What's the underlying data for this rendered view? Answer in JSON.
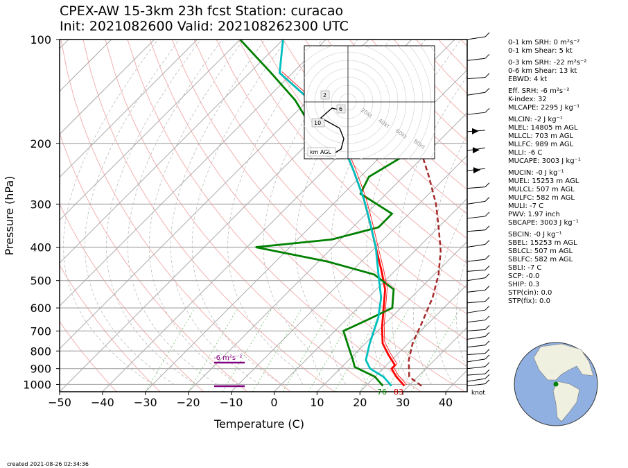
{
  "header": {
    "line1": "CPEX-AW 15-3km  23h fcst  Station: curacao",
    "line2": "Init: 2021082600  Valid: 202108262300 UTC"
  },
  "axes": {
    "xlabel": "Temperature (C)",
    "ylabel": "Pressure (hPa)",
    "xticks": [
      "−50",
      "−40",
      "−30",
      "−20",
      "−10",
      "0",
      "10",
      "20",
      "30",
      "40"
    ],
    "yticks": [
      "100",
      "200",
      "300",
      "400",
      "500",
      "600",
      "700",
      "800",
      "900",
      "1000"
    ]
  },
  "chart_data": {
    "type": "line",
    "subtype": "skew-T log-P sounding",
    "xlim": [
      -50,
      45
    ],
    "ylim": [
      1050,
      100
    ],
    "yscale": "log",
    "series": [
      {
        "name": "temperature",
        "color": "#ff0000",
        "points": [
          [
            29,
            1010
          ],
          [
            25,
            950
          ],
          [
            22,
            900
          ],
          [
            22,
            880
          ],
          [
            18,
            820
          ],
          [
            14,
            760
          ],
          [
            10,
            680
          ],
          [
            6,
            600
          ],
          [
            2,
            530
          ],
          [
            -3,
            470
          ],
          [
            -10,
            400
          ],
          [
            -17,
            340
          ],
          [
            -24,
            290
          ],
          [
            -33,
            240
          ],
          [
            -42,
            200
          ],
          [
            -51,
            170
          ],
          [
            -62,
            145
          ],
          [
            -73,
            125
          ]
        ]
      },
      {
        "name": "dewpoint",
        "color": "#008000",
        "points": [
          [
            24,
            1010
          ],
          [
            20,
            950
          ],
          [
            13,
            890
          ],
          [
            11,
            850
          ],
          [
            7,
            780
          ],
          [
            2,
            700
          ],
          [
            5,
            650
          ],
          [
            8,
            600
          ],
          [
            4,
            530
          ],
          [
            -4,
            480
          ],
          [
            -18,
            440
          ],
          [
            -38,
            400
          ],
          [
            -22,
            380
          ],
          [
            -14,
            350
          ],
          [
            -14,
            320
          ],
          [
            -26,
            280
          ],
          [
            -28,
            250
          ],
          [
            -25,
            220
          ],
          [
            -30,
            200
          ],
          [
            -56,
            170
          ],
          [
            -63,
            150
          ],
          [
            -75,
            125
          ],
          [
            -90,
            100
          ]
        ]
      },
      {
        "name": "virtual temperature / wet-bulb",
        "color": "#00c0c0",
        "points": [
          [
            26,
            1010
          ],
          [
            22,
            950
          ],
          [
            17,
            900
          ],
          [
            14,
            850
          ],
          [
            11,
            760
          ],
          [
            7,
            640
          ],
          [
            3,
            560
          ],
          [
            -3,
            480
          ],
          [
            -10,
            400
          ],
          [
            -17,
            340
          ],
          [
            -24,
            290
          ],
          [
            -33,
            240
          ],
          [
            -42,
            200
          ],
          [
            -51,
            170
          ],
          [
            -62,
            145
          ],
          [
            -73,
            125
          ],
          [
            -80,
            100
          ]
        ]
      },
      {
        "name": "parcel",
        "color": "#a52a2a",
        "points": [
          [
            33,
            1010
          ],
          [
            28,
            950
          ],
          [
            24,
            850
          ],
          [
            21,
            760
          ],
          [
            18,
            650
          ],
          [
            15,
            560
          ],
          [
            11,
            480
          ],
          [
            6,
            410
          ],
          [
            0,
            350
          ],
          [
            -6,
            300
          ],
          [
            -14,
            250
          ],
          [
            -22,
            210
          ],
          [
            -31,
            175
          ],
          [
            -42,
            145
          ],
          [
            -50,
            125
          ],
          [
            -60,
            110
          ]
        ]
      }
    ],
    "surface_labels": {
      "dewpoint": "76",
      "temperature": "83"
    },
    "srh_annotation": "-6 m²s⁻²",
    "barb_unit": "knot",
    "hodograph": {
      "ring_labels": [
        "20kt",
        "40kt",
        "60kt",
        "80kt"
      ],
      "height_labels": [
        "2",
        "6",
        "10"
      ],
      "legend": "km AGL"
    },
    "grid": true
  },
  "params": [
    {
      "text": "0-1 km SRH: 0 m²s⁻²"
    },
    {
      "text": "0-1 km Shear: 5 kt"
    },
    {
      "gap": true
    },
    {
      "text": "0-3 km SRH: -22 m²s⁻²"
    },
    {
      "text": "0-6 km Shear: 13 kt"
    },
    {
      "text": "EBWD: 4 kt"
    },
    {
      "gap": true
    },
    {
      "text": "Eff. SRH: -6 m²s⁻²"
    },
    {
      "text": "K-index: 32"
    },
    {
      "text": "MLCAPE: 2295 J kg⁻¹"
    },
    {
      "gap": true
    },
    {
      "text": "MLCIN: -2 J kg⁻¹"
    },
    {
      "text": "MLEL: 14805 m AGL"
    },
    {
      "text": "MLLCL: 703 m AGL"
    },
    {
      "text": "MLLFC: 989 m AGL"
    },
    {
      "text": "MLLI: -6 C"
    },
    {
      "text": "MUCAPE: 3003 J kg⁻¹"
    },
    {
      "gap": true
    },
    {
      "text": "MUCIN: -0 J kg⁻¹"
    },
    {
      "text": "MUEL: 15253 m AGL"
    },
    {
      "text": "MULCL: 507 m AGL"
    },
    {
      "text": "MULFC: 582 m AGL"
    },
    {
      "text": "MULI: -7 C"
    },
    {
      "text": "PWV: 1.97 inch"
    },
    {
      "text": "SBCAPE: 3003 J kg⁻¹"
    },
    {
      "gap": true
    },
    {
      "text": "SBCIN: -0 J kg⁻¹"
    },
    {
      "text": "SBEL: 15253 m AGL"
    },
    {
      "text": "SBLCL: 507 m AGL"
    },
    {
      "text": "SBLFC: 582 m AGL"
    },
    {
      "text": "SBLI: -7 C"
    },
    {
      "text": "SCP: -0.0"
    },
    {
      "text": "SHIP: 0.3"
    },
    {
      "text": "STP(cin): 0.0"
    },
    {
      "text": "STP(fix): 0.0"
    }
  ],
  "footer": {
    "created": "created 2021-08-26 02:34:36"
  },
  "colors": {
    "temperature": "#ff0000",
    "dewpoint": "#008000",
    "wetbulb": "#00c0c0",
    "parcel": "#a52a2a",
    "srh": "#800080",
    "globe_ocean": "#8fb0e0",
    "globe_land": "#f0f0e0"
  }
}
